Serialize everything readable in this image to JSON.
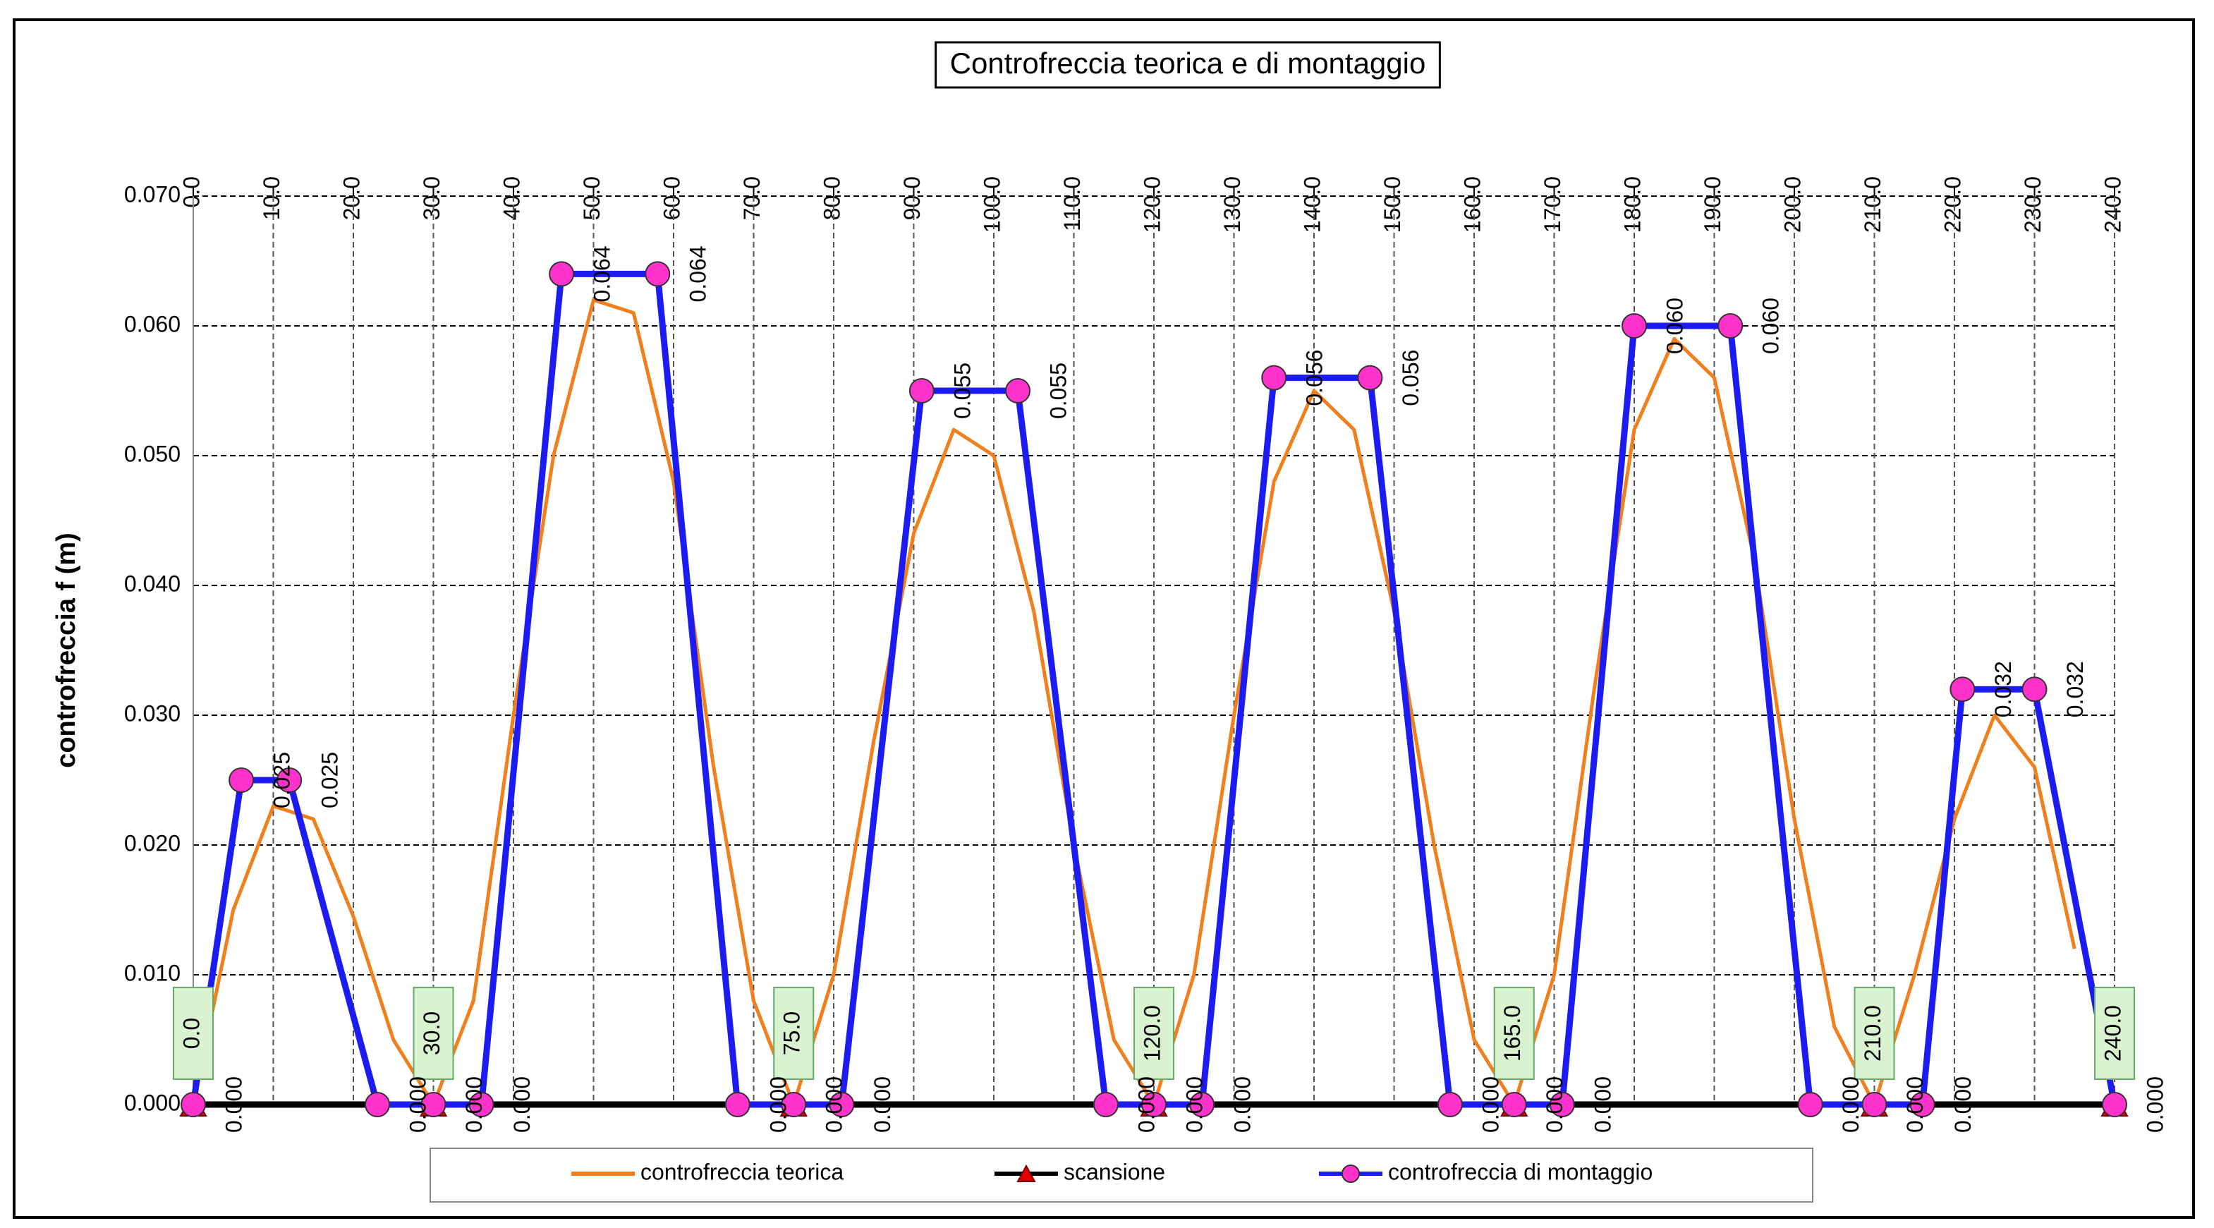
{
  "chart_data": {
    "type": "line",
    "title": "Controfreccia teorica e di montaggio",
    "y_label": "controfreccia f (m)",
    "xlim": [
      0,
      240
    ],
    "ylim": [
      0,
      0.07
    ],
    "xticks": [
      {
        "value": 0,
        "label": "0.0"
      },
      {
        "value": 10,
        "label": "10.0"
      },
      {
        "value": 20,
        "label": "20.0"
      },
      {
        "value": 30,
        "label": "30.0"
      },
      {
        "value": 40,
        "label": "40.0"
      },
      {
        "value": 50,
        "label": "50.0"
      },
      {
        "value": 60,
        "label": "60.0"
      },
      {
        "value": 70,
        "label": "70.0"
      },
      {
        "value": 80,
        "label": "80.0"
      },
      {
        "value": 90,
        "label": "90.0"
      },
      {
        "value": 100,
        "label": "100.0"
      },
      {
        "value": 110,
        "label": "110.0"
      },
      {
        "value": 120,
        "label": "120.0"
      },
      {
        "value": 130,
        "label": "130.0"
      },
      {
        "value": 140,
        "label": "140.0"
      },
      {
        "value": 150,
        "label": "150.0"
      },
      {
        "value": 160,
        "label": "160.0"
      },
      {
        "value": 170,
        "label": "170.0"
      },
      {
        "value": 180,
        "label": "180.0"
      },
      {
        "value": 190,
        "label": "190.0"
      },
      {
        "value": 200,
        "label": "200.0"
      },
      {
        "value": 210,
        "label": "210.0"
      },
      {
        "value": 220,
        "label": "220.0"
      },
      {
        "value": 230,
        "label": "230.0"
      },
      {
        "value": 240,
        "label": "240.0"
      }
    ],
    "yticks": [
      {
        "value": 0,
        "label": "0.000"
      },
      {
        "value": 0.01,
        "label": "0.010"
      },
      {
        "value": 0.02,
        "label": "0.020"
      },
      {
        "value": 0.03,
        "label": "0.030"
      },
      {
        "value": 0.04,
        "label": "0.040"
      },
      {
        "value": 0.05,
        "label": "0.050"
      },
      {
        "value": 0.06,
        "label": "0.060"
      },
      {
        "value": 0.07,
        "label": "0.070"
      }
    ],
    "grid": true,
    "legend": "bottom",
    "series": [
      {
        "name": "controfreccia teorica",
        "color": "#F07F1E",
        "marker": "none",
        "x": [
          0,
          5,
          10,
          15,
          20,
          25,
          30,
          35,
          40,
          45,
          50,
          55,
          60,
          65,
          70,
          75,
          80,
          85,
          90,
          95,
          100,
          105,
          110,
          115,
          120,
          125,
          130,
          135,
          140,
          145,
          150,
          155,
          160,
          165,
          170,
          175,
          180,
          185,
          190,
          195,
          200,
          205,
          210,
          215,
          220,
          225,
          230,
          235
        ],
        "values": [
          0,
          0.015,
          0.023,
          0.022,
          0.0145,
          0.005,
          0,
          0.008,
          0.03,
          0.05,
          0.062,
          0.061,
          0.048,
          0.026,
          0.008,
          0,
          0.01,
          0.028,
          0.044,
          0.052,
          0.05,
          0.038,
          0.02,
          0.005,
          0,
          0.01,
          0.03,
          0.048,
          0.055,
          0.052,
          0.038,
          0.02,
          0.005,
          0,
          0.01,
          0.032,
          0.052,
          0.059,
          0.056,
          0.042,
          0.022,
          0.006,
          0,
          0.01,
          0.022,
          0.03,
          0.026,
          0.012
        ]
      },
      {
        "name": "scansione",
        "color": "#000000",
        "marker": "triangle",
        "marker_color": "#E00000",
        "x": [
          0,
          30,
          75,
          120,
          165,
          210,
          240
        ],
        "x_labels": [
          "0.0",
          "30.0",
          "75.0",
          "120.0",
          "165.0",
          "210.0",
          "240.0"
        ],
        "values": [
          0,
          0,
          0,
          0,
          0,
          0,
          0
        ]
      },
      {
        "name": "controfreccia di montaggio",
        "color": "#1C1CF0",
        "marker": "circle",
        "marker_color": "#FF33CC",
        "x": [
          0,
          6,
          12,
          23,
          30,
          36,
          46,
          58,
          68,
          75,
          81,
          91,
          103,
          114,
          120,
          126,
          135,
          147,
          157,
          165,
          171,
          180,
          192,
          202,
          210,
          216,
          221,
          230,
          240
        ],
        "values": [
          0,
          0.025,
          0.025,
          0,
          0,
          0,
          0.064,
          0.064,
          0,
          0,
          0,
          0.055,
          0.055,
          0,
          0,
          0,
          0.056,
          0.056,
          0,
          0,
          0,
          0.06,
          0.06,
          0,
          0,
          0,
          0.032,
          0.032,
          0
        ],
        "value_labels": [
          "0.000",
          "0.025",
          "0.025",
          "0.000",
          "0.000",
          "0.000",
          "0.064",
          "0.064",
          "0.000",
          "0.000",
          "0.000",
          "0.055",
          "0.055",
          "0.000",
          "0.000",
          "0.000",
          "0.056",
          "0.056",
          "0.000",
          "0.000",
          "0.000",
          "0.060",
          "0.060",
          "0.000",
          "0.000",
          "0.000",
          "0.032",
          "0.032",
          "0.000"
        ]
      }
    ]
  }
}
